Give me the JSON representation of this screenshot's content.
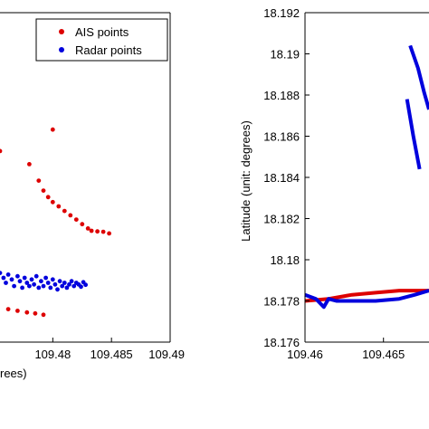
{
  "chart_data": [
    {
      "type": "scatter",
      "xlabel_visible": "rees)",
      "xticks": [
        "109.48",
        "109.485",
        "109.49"
      ],
      "xtick_values": [
        109.48,
        109.485,
        109.49
      ],
      "xlim": [
        109.4755,
        109.49
      ],
      "ylim": [
        0,
        1
      ],
      "legend": {
        "placement": "top-right",
        "entries": [
          {
            "label": "AIS points",
            "color": "#dd0000"
          },
          {
            "label": "Radar points",
            "color": "#0000dd"
          }
        ]
      },
      "series": [
        {
          "name": "AIS points",
          "color": "#dd0000",
          "points": [
            [
              109.4755,
              0.58
            ],
            [
              109.478,
              0.54
            ],
            [
              109.48,
              0.645
            ],
            [
              109.4788,
              0.49
            ],
            [
              109.4792,
              0.46
            ],
            [
              109.4796,
              0.44
            ],
            [
              109.48,
              0.425
            ],
            [
              109.4805,
              0.412
            ],
            [
              109.481,
              0.398
            ],
            [
              109.4815,
              0.385
            ],
            [
              109.482,
              0.372
            ],
            [
              109.4825,
              0.358
            ],
            [
              109.483,
              0.345
            ],
            [
              109.4833,
              0.338
            ],
            [
              109.4838,
              0.336
            ],
            [
              109.4843,
              0.335
            ],
            [
              109.4848,
              0.33
            ],
            [
              109.4762,
              0.1
            ],
            [
              109.477,
              0.095
            ],
            [
              109.4778,
              0.09
            ],
            [
              109.4785,
              0.087
            ],
            [
              109.4792,
              0.083
            ]
          ]
        },
        {
          "name": "Radar points",
          "color": "#0000dd",
          "points": [
            [
              109.4755,
              0.21
            ],
            [
              109.4758,
              0.195
            ],
            [
              109.476,
              0.18
            ],
            [
              109.4762,
              0.205
            ],
            [
              109.4765,
              0.19
            ],
            [
              109.4767,
              0.17
            ],
            [
              109.477,
              0.2
            ],
            [
              109.4772,
              0.185
            ],
            [
              109.4774,
              0.165
            ],
            [
              109.4776,
              0.195
            ],
            [
              109.4778,
              0.18
            ],
            [
              109.478,
              0.17
            ],
            [
              109.4782,
              0.19
            ],
            [
              109.4784,
              0.175
            ],
            [
              109.4786,
              0.2
            ],
            [
              109.4788,
              0.165
            ],
            [
              109.479,
              0.185
            ],
            [
              109.4792,
              0.17
            ],
            [
              109.4794,
              0.195
            ],
            [
              109.4796,
              0.18
            ],
            [
              109.4798,
              0.165
            ],
            [
              109.48,
              0.19
            ],
            [
              109.4802,
              0.175
            ],
            [
              109.4804,
              0.16
            ],
            [
              109.4806,
              0.185
            ],
            [
              109.4808,
              0.17
            ],
            [
              109.481,
              0.18
            ],
            [
              109.4812,
              0.165
            ],
            [
              109.4814,
              0.175
            ],
            [
              109.4816,
              0.185
            ],
            [
              109.4818,
              0.17
            ],
            [
              109.482,
              0.18
            ],
            [
              109.4822,
              0.175
            ],
            [
              109.4824,
              0.168
            ],
            [
              109.4826,
              0.182
            ],
            [
              109.4828,
              0.174
            ]
          ]
        }
      ]
    },
    {
      "type": "line",
      "ylabel": "Latitude (unit: degrees)",
      "xticks": [
        "109.46",
        "109.465"
      ],
      "xtick_values": [
        109.46,
        109.465
      ],
      "yticks": [
        "18.176",
        "18.178",
        "18.18",
        "18.182",
        "18.184",
        "18.186",
        "18.188",
        "18.19",
        "18.192"
      ],
      "ytick_values": [
        18.176,
        18.178,
        18.18,
        18.182,
        18.184,
        18.186,
        18.188,
        18.19,
        18.192
      ],
      "xlim": [
        109.46,
        109.4679
      ],
      "ylim": [
        18.176,
        18.192
      ],
      "series": [
        {
          "name": "",
          "color": "#dd0000",
          "points": [
            [
              109.46,
              18.178
            ],
            [
              109.4615,
              18.1781
            ],
            [
              109.463,
              18.1783
            ],
            [
              109.4645,
              18.1784
            ],
            [
              109.466,
              18.1785
            ],
            [
              109.4679,
              18.1785
            ]
          ]
        },
        {
          "name": "",
          "color": "#0000dd",
          "points": [
            [
              109.46,
              18.1783
            ],
            [
              109.4607,
              18.1781
            ],
            [
              109.4612,
              18.1777
            ],
            [
              109.4615,
              18.1781
            ],
            [
              109.462,
              18.178
            ],
            [
              109.463,
              18.178
            ],
            [
              109.4645,
              18.178
            ],
            [
              109.466,
              18.1781
            ],
            [
              109.467,
              18.1783
            ],
            [
              109.4679,
              18.1785
            ]
          ]
        },
        {
          "name": "",
          "color": "#0000dd",
          "points": [
            [
              109.4667,
              18.1904
            ],
            [
              109.4672,
              18.1893
            ],
            [
              109.4676,
              18.1881
            ],
            [
              109.4679,
              18.1873
            ]
          ]
        },
        {
          "name": "",
          "color": "#0000dd",
          "points": [
            [
              109.4665,
              18.1878
            ],
            [
              109.4669,
              18.186
            ],
            [
              109.4673,
              18.1844
            ]
          ]
        }
      ]
    }
  ]
}
